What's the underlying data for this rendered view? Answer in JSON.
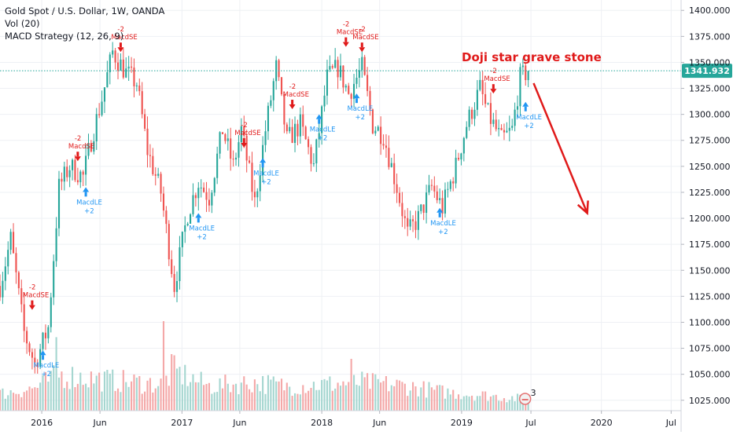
{
  "legend": {
    "line1": "Gold Spot / U.S. Dollar, 1W, OANDA",
    "line2": "Vol (20)",
    "line3": "MACD Strategy (12, 26, 9)"
  },
  "annotation": {
    "text": "Doji star   grave stone",
    "color": "#e01a1a"
  },
  "last_price": {
    "label": "1341.932",
    "value": 1341.932,
    "color": "#26a69a"
  },
  "badge_count": "3",
  "colors": {
    "up": "#26a69a",
    "down": "#ef5350",
    "vol_up": "#a5d6d0",
    "vol_down": "#f4a8a8",
    "long_signal": "#2196f3",
    "short_signal": "#e01a1a"
  },
  "chart_data": {
    "type": "candlestick",
    "title": "Gold Spot / U.S. Dollar, 1W, OANDA",
    "ylim": [
      1015,
      1410
    ],
    "y_ticks": [
      1025,
      1050,
      1075,
      1100,
      1125,
      1150,
      1175,
      1200,
      1225,
      1250,
      1275,
      1300,
      1325,
      1350,
      1375,
      1400
    ],
    "y_tick_labels": [
      "1025.000",
      "1050.000",
      "1075.000",
      "1100.000",
      "1125.000",
      "1150.000",
      "1175.000",
      "1200.000",
      "1225.000",
      "1250.000",
      "1275.000",
      "1300.000",
      "1325.000",
      "1350.000",
      "1375.000",
      "1400.000"
    ],
    "x_range": [
      "2015-09-14",
      "2020-07-27"
    ],
    "x_ticks": [
      {
        "date": "2016-01-01",
        "label": "2016"
      },
      {
        "date": "2016-06-01",
        "label": "Jun"
      },
      {
        "date": "2017-01-01",
        "label": "2017"
      },
      {
        "date": "2017-06-01",
        "label": "Jun"
      },
      {
        "date": "2018-01-01",
        "label": "2018"
      },
      {
        "date": "2018-06-01",
        "label": "Jun"
      },
      {
        "date": "2019-01-01",
        "label": "2019"
      },
      {
        "date": "2019-07-01",
        "label": "Jul"
      },
      {
        "date": "2020-01-01",
        "label": "2020"
      },
      {
        "date": "2020-07-01",
        "label": "Jul"
      }
    ],
    "last_date": "2019-06-24",
    "close_path": [
      [
        "2015-09-14",
        1135
      ],
      [
        "2015-10-12",
        1180
      ],
      [
        "2015-11-16",
        1090
      ],
      [
        "2015-12-14",
        1060
      ],
      [
        "2016-01-18",
        1095
      ],
      [
        "2016-02-15",
        1230
      ],
      [
        "2016-03-14",
        1250
      ],
      [
        "2016-04-18",
        1240
      ],
      [
        "2016-05-09",
        1275
      ],
      [
        "2016-06-06",
        1315
      ],
      [
        "2016-07-04",
        1360
      ],
      [
        "2016-08-08",
        1340
      ],
      [
        "2016-09-05",
        1330
      ],
      [
        "2016-10-03",
        1265
      ],
      [
        "2016-11-07",
        1225
      ],
      [
        "2016-12-12",
        1135
      ],
      [
        "2017-01-16",
        1205
      ],
      [
        "2017-02-13",
        1235
      ],
      [
        "2017-03-13",
        1220
      ],
      [
        "2017-04-17",
        1285
      ],
      [
        "2017-05-15",
        1250
      ],
      [
        "2017-06-05",
        1285
      ],
      [
        "2017-07-10",
        1215
      ],
      [
        "2017-08-07",
        1285
      ],
      [
        "2017-09-04",
        1345
      ],
      [
        "2017-10-02",
        1275
      ],
      [
        "2017-11-06",
        1290
      ],
      [
        "2017-12-11",
        1250
      ],
      [
        "2018-01-15",
        1335
      ],
      [
        "2018-02-12",
        1345
      ],
      [
        "2018-03-12",
        1320
      ],
      [
        "2018-04-16",
        1345
      ],
      [
        "2018-05-14",
        1290
      ],
      [
        "2018-06-11",
        1280
      ],
      [
        "2018-07-16",
        1230
      ],
      [
        "2018-08-13",
        1185
      ],
      [
        "2018-09-10",
        1200
      ],
      [
        "2018-10-15",
        1230
      ],
      [
        "2018-11-12",
        1210
      ],
      [
        "2018-12-17",
        1250
      ],
      [
        "2019-01-14",
        1290
      ],
      [
        "2019-02-18",
        1325
      ],
      [
        "2019-03-11",
        1300
      ],
      [
        "2019-04-15",
        1275
      ],
      [
        "2019-05-13",
        1285
      ],
      [
        "2019-06-03",
        1335
      ],
      [
        "2019-06-24",
        1341.9
      ]
    ],
    "volume_path": [
      [
        "2015-09-14",
        0.18
      ],
      [
        "2015-12-14",
        0.24
      ],
      [
        "2016-02-15",
        0.38
      ],
      [
        "2016-07-04",
        0.32
      ],
      [
        "2016-11-07",
        0.28
      ],
      [
        "2016-12-12",
        0.42
      ],
      [
        "2017-03-13",
        0.26
      ],
      [
        "2017-07-10",
        0.3
      ],
      [
        "2017-10-02",
        0.26
      ],
      [
        "2018-01-15",
        0.28
      ],
      [
        "2018-04-16",
        0.3
      ],
      [
        "2018-08-13",
        0.26
      ],
      [
        "2018-11-12",
        0.2
      ],
      [
        "2019-03-11",
        0.16
      ],
      [
        "2019-06-24",
        0.12
      ]
    ],
    "volume_spikes": [
      [
        "2016-02-08",
        0.78
      ],
      [
        "2016-11-14",
        0.95
      ],
      [
        "2016-12-05",
        0.6
      ],
      [
        "2018-03-19",
        0.55
      ]
    ],
    "signals": [
      {
        "type": "short",
        "date": "2015-12-07",
        "price": 1112,
        "label": "MacdSE",
        "qty": "-2"
      },
      {
        "type": "long",
        "date": "2016-01-04",
        "price": 1073,
        "label": "MacdLE",
        "qty": "+2"
      },
      {
        "type": "short",
        "date": "2016-04-04",
        "price": 1255,
        "label": "MacdSE",
        "qty": "-2"
      },
      {
        "type": "long",
        "date": "2016-04-25",
        "price": 1230,
        "label": "MacdLE",
        "qty": "+2"
      },
      {
        "type": "short",
        "date": "2016-07-25",
        "price": 1360,
        "label": "MacdSE",
        "qty": "-2"
      },
      {
        "type": "long",
        "date": "2017-02-13",
        "price": 1205,
        "label": "MacdLE",
        "qty": "+2"
      },
      {
        "type": "short",
        "date": "2017-06-12",
        "price": 1268,
        "label": "MacdSE",
        "qty": "-2"
      },
      {
        "type": "long",
        "date": "2017-07-31",
        "price": 1258,
        "label": "MacdLE",
        "qty": "+2"
      },
      {
        "type": "short",
        "date": "2017-10-16",
        "price": 1305,
        "label": "MacdSE",
        "qty": "-2"
      },
      {
        "type": "long",
        "date": "2017-12-25",
        "price": 1300,
        "label": "MacdLE",
        "qty": "+2"
      },
      {
        "type": "short",
        "date": "2018-03-05",
        "price": 1365,
        "label": "MacdSE",
        "qty": "-2"
      },
      {
        "type": "short",
        "date": "2018-04-16",
        "price": 1360,
        "label": "MacdSE",
        "qty": "-2"
      },
      {
        "type": "long",
        "date": "2018-04-02",
        "price": 1320,
        "label": "MacdLE",
        "qty": "+2"
      },
      {
        "type": "long",
        "date": "2018-11-05",
        "price": 1210,
        "label": "MacdLE",
        "qty": "+2"
      },
      {
        "type": "short",
        "date": "2019-03-25",
        "price": 1320,
        "label": "MacdSE",
        "qty": "-2"
      },
      {
        "type": "long",
        "date": "2019-06-17",
        "price": 1312,
        "label": "MacdLE",
        "qty": "+2"
      }
    ],
    "forecast_arrow": {
      "from": [
        "2019-07-08",
        1330
      ],
      "to": [
        "2019-11-25",
        1205
      ]
    }
  }
}
